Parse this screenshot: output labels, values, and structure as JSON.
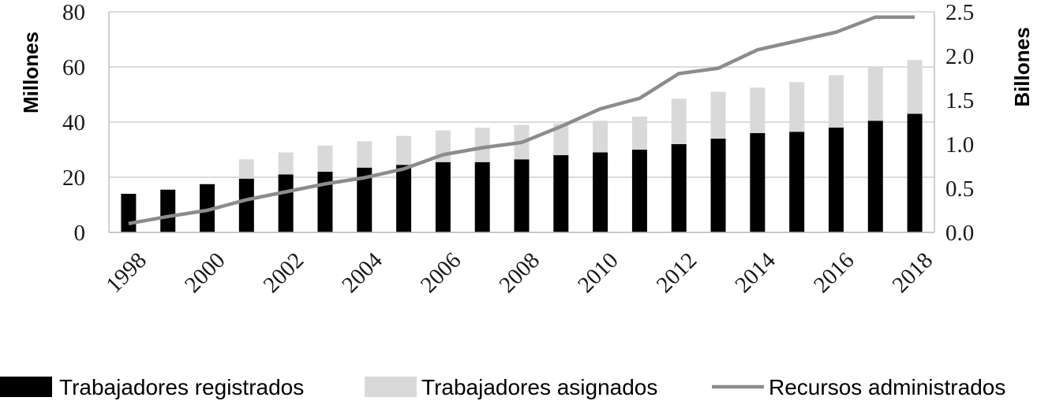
{
  "chart_data": {
    "type": "bar",
    "stacked": true,
    "categories": [
      "1998",
      "1999",
      "2000",
      "2001",
      "2002",
      "2003",
      "2004",
      "2005",
      "2006",
      "2007",
      "2008",
      "2009",
      "2010",
      "2011",
      "2012",
      "2013",
      "2014",
      "2015",
      "2016",
      "2017",
      "2018"
    ],
    "x_tick_labels": [
      "1998",
      "2000",
      "2002",
      "2004",
      "2006",
      "2008",
      "2010",
      "2012",
      "2014",
      "2016",
      "2018"
    ],
    "title": "",
    "ylabel": "Millones",
    "y2label": "Billones",
    "ylim": [
      0,
      80
    ],
    "y_ticks": [
      0,
      20,
      40,
      60,
      80
    ],
    "y2lim": [
      0.0,
      2.5
    ],
    "y2_ticks": [
      "0.0",
      "0.5",
      "1.0",
      "1.5",
      "2.0",
      "2.5"
    ],
    "grid": true,
    "legend_position": "bottom",
    "series": [
      {
        "name": "Trabajadores registrados",
        "kind": "bar",
        "axis": "left",
        "color": "#000000",
        "values": [
          14,
          15.5,
          17.5,
          19.5,
          21,
          22,
          23.5,
          24.5,
          25.5,
          25.5,
          26.5,
          28,
          29,
          30,
          32,
          34,
          36,
          36.5,
          38,
          40.5,
          43
        ]
      },
      {
        "name": "Trabajadores asignados",
        "kind": "bar",
        "axis": "left",
        "color": "#d9d9d9",
        "values": [
          0,
          0,
          0,
          7,
          8,
          9.5,
          9.5,
          10.5,
          11.5,
          12.5,
          12.5,
          11.5,
          11.5,
          12,
          16.5,
          17,
          16.5,
          18,
          19,
          19.5,
          19.5
        ]
      },
      {
        "name": "Recursos administrados",
        "kind": "line",
        "axis": "right",
        "color": "#8c8c8c",
        "values": [
          0.1,
          0.18,
          0.25,
          0.37,
          0.46,
          0.55,
          0.62,
          0.72,
          0.88,
          0.96,
          1.02,
          1.2,
          1.4,
          1.52,
          1.8,
          1.86,
          2.07,
          2.17,
          2.27,
          2.44,
          2.44
        ]
      }
    ]
  }
}
